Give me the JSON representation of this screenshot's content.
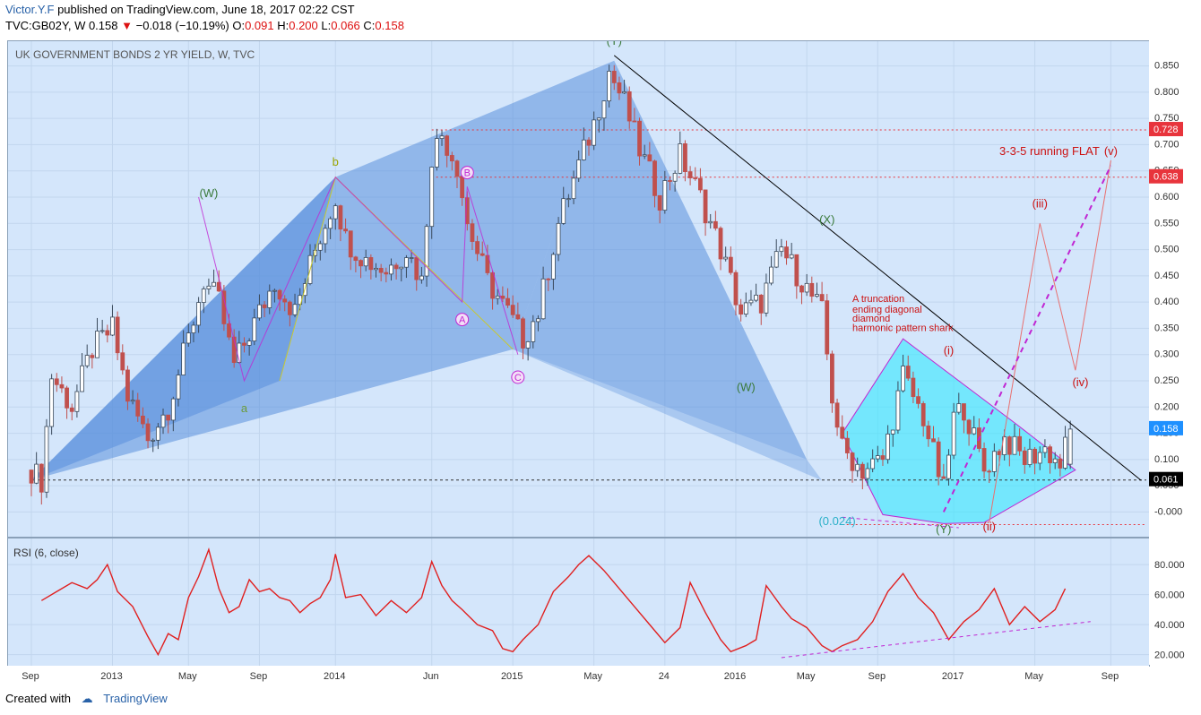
{
  "header": {
    "author": "Victor.Y.F",
    "published": "published on TradingView.com, June 18, 2017 02:22 CST",
    "symbol_line_prefix": "TVC:GB02Y, W  0.158",
    "change": "−0.018 (−10.19%)",
    "o_label": "O:",
    "o_value": "0.091",
    "h_label": "H:",
    "h_value": "0.200",
    "l_label": "L:",
    "l_value": "0.066",
    "c_label": "C:",
    "c_value": "0.158"
  },
  "footer": {
    "created_with": "Created with",
    "brand": "TradingView"
  },
  "colors": {
    "pane_bg": "#d4e6fb",
    "harmonic_fill": "#5a8fdc",
    "diagonal_fill": "#34e8ff",
    "wave_magenta": "#c026d3",
    "projection_red": "#e87070",
    "rsi_line": "#e02020",
    "candle_up": "#3a4a5c",
    "candle_down": "#c0504d",
    "last_price": "#1e90ff",
    "level_red": "#e8343c"
  },
  "chart_data": [
    {
      "type": "candlestick",
      "title": "UK GOVERNMENT BONDS 2 YR YIELD, W, TVC",
      "interval": "W",
      "y_range": [
        -0.03,
        0.88
      ],
      "y_ticks": [
        "0.850",
        "0.800",
        "0.750",
        "0.700",
        "0.650",
        "0.600",
        "0.550",
        "0.500",
        "0.450",
        "0.400",
        "0.350",
        "0.300",
        "0.250",
        "0.200",
        "0.150",
        "0.100",
        "0.050",
        "-0.000"
      ],
      "x_ticks": [
        {
          "label": "Sep",
          "t": 0
        },
        {
          "label": "2013",
          "t": 16
        },
        {
          "label": "May",
          "t": 31
        },
        {
          "label": "Sep",
          "t": 45
        },
        {
          "label": "2014",
          "t": 60
        },
        {
          "label": "Jun",
          "t": 79
        },
        {
          "label": "2015",
          "t": 95
        },
        {
          "label": "May",
          "t": 111
        },
        {
          "label": "24",
          "t": 125
        },
        {
          "label": "2016",
          "t": 139
        },
        {
          "label": "May",
          "t": 153
        },
        {
          "label": "Sep",
          "t": 167
        },
        {
          "label": "2017",
          "t": 182
        },
        {
          "label": "May",
          "t": 198
        },
        {
          "label": "Sep",
          "t": 213
        }
      ],
      "close_path": [
        [
          0,
          0.08
        ],
        [
          2,
          0.06
        ],
        [
          4,
          0.26
        ],
        [
          8,
          0.2
        ],
        [
          12,
          0.31
        ],
        [
          16,
          0.35
        ],
        [
          19,
          0.22
        ],
        [
          23,
          0.14
        ],
        [
          27,
          0.2
        ],
        [
          31,
          0.33
        ],
        [
          34,
          0.44
        ],
        [
          37,
          0.4
        ],
        [
          40,
          0.28
        ],
        [
          44,
          0.36
        ],
        [
          48,
          0.44
        ],
        [
          52,
          0.38
        ],
        [
          56,
          0.5
        ],
        [
          60,
          0.6
        ],
        [
          62,
          0.52
        ],
        [
          66,
          0.48
        ],
        [
          70,
          0.46
        ],
        [
          74,
          0.5
        ],
        [
          77,
          0.44
        ],
        [
          79,
          0.68
        ],
        [
          81,
          0.72
        ],
        [
          84,
          0.66
        ],
        [
          86,
          0.55
        ],
        [
          90,
          0.44
        ],
        [
          94,
          0.38
        ],
        [
          97,
          0.33
        ],
        [
          100,
          0.38
        ],
        [
          104,
          0.55
        ],
        [
          108,
          0.66
        ],
        [
          111,
          0.74
        ],
        [
          114,
          0.84
        ],
        [
          117,
          0.78
        ],
        [
          120,
          0.69
        ],
        [
          124,
          0.6
        ],
        [
          128,
          0.68
        ],
        [
          132,
          0.6
        ],
        [
          136,
          0.5
        ],
        [
          140,
          0.38
        ],
        [
          144,
          0.4
        ],
        [
          148,
          0.5
        ],
        [
          152,
          0.44
        ],
        [
          156,
          0.38
        ],
        [
          158,
          0.22
        ],
        [
          160,
          0.12
        ],
        [
          164,
          0.08
        ],
        [
          168,
          0.1
        ],
        [
          172,
          0.26
        ],
        [
          176,
          0.18
        ],
        [
          180,
          0.04
        ],
        [
          182,
          0.18
        ],
        [
          184,
          0.2
        ],
        [
          188,
          0.08
        ],
        [
          192,
          0.14
        ],
        [
          196,
          0.1
        ],
        [
          200,
          0.12
        ],
        [
          203,
          0.09
        ],
        [
          205,
          0.158
        ]
      ],
      "last_price": "0.158",
      "price_labels": [
        {
          "value": "0.728",
          "y": 0.728,
          "color": "#e8343c"
        },
        {
          "value": "0.638",
          "y": 0.638,
          "color": "#e8343c"
        },
        {
          "value": "0.158",
          "y": 0.158,
          "color": "#1e90ff"
        },
        {
          "value": "0.061",
          "y": 0.061,
          "color": "#000000"
        }
      ],
      "level_lines": [
        {
          "y": 0.728,
          "style": "red-dotted"
        },
        {
          "y": 0.638,
          "style": "red-dotted"
        },
        {
          "y": 0.061,
          "style": "black-dashed"
        },
        {
          "y": -0.024,
          "style": "red-dotted"
        }
      ],
      "harmonic_pattern": {
        "X": [
          0,
          0.061
        ],
        "A": [
          49,
          0.25
        ],
        "B": [
          60,
          0.638
        ],
        "C": [
          95,
          0.31
        ],
        "D": [
          115,
          0.86
        ]
      },
      "harmonic_pattern_2": {
        "X": [
          115,
          0.86
        ],
        "A": [
          95,
          0.31
        ],
        "B": [
          153,
          0.1
        ],
        "C": [
          156,
          0.06
        ]
      },
      "diamond": [
        [
          160,
          0.15
        ],
        [
          172,
          0.33
        ],
        [
          194,
          0.17
        ],
        [
          206,
          0.08
        ],
        [
          188,
          -0.02
        ],
        [
          180,
          -0.022
        ],
        [
          168,
          -0.005
        ]
      ],
      "resistance_line": [
        [
          115,
          0.87
        ],
        [
          219,
          0.06
        ]
      ],
      "wave_labels": [
        {
          "text": "(W)",
          "t": 35,
          "y": 0.6,
          "color": "#3a7a3a"
        },
        {
          "text": "b",
          "t": 60,
          "y": 0.66,
          "color": "#9aa400"
        },
        {
          "text": "a",
          "t": 42,
          "y": 0.19,
          "color": "#6a9a3a"
        },
        {
          "text": "(Y)",
          "t": 115,
          "y": 0.89,
          "color": "#3a7a3a"
        },
        {
          "text": "B",
          "t": 86,
          "y": 0.64,
          "color": "#c026d3",
          "circle": true
        },
        {
          "text": "A",
          "t": 85,
          "y": 0.36,
          "color": "#c026d3",
          "circle": true
        },
        {
          "text": "C",
          "t": 96,
          "y": 0.25,
          "color": "#c026d3",
          "circle": true
        },
        {
          "text": "(X)",
          "t": 157,
          "y": 0.55,
          "color": "#3a7a3a"
        },
        {
          "text": "(W)",
          "t": 141,
          "y": 0.23,
          "color": "#3a7a3a"
        },
        {
          "text": "(i)",
          "t": 181,
          "y": 0.3,
          "color": "#cc1111"
        },
        {
          "text": "(ii)",
          "t": 189,
          "y": -0.035,
          "color": "#cc1111"
        },
        {
          "text": "(iii)",
          "t": 199,
          "y": 0.58,
          "color": "#cc1111"
        },
        {
          "text": "(iv)",
          "t": 207,
          "y": 0.24,
          "color": "#cc1111"
        },
        {
          "text": "(v)",
          "t": 213,
          "y": 0.68,
          "color": "#cc1111"
        },
        {
          "text": "(Y)",
          "t": 180,
          "y": -0.04,
          "color": "#3a7a3a"
        },
        {
          "text": "(0.024)",
          "t": 159,
          "y": -0.025,
          "color": "#2ab0c8"
        }
      ],
      "annotations": [
        {
          "text": "3-3-5 running FLAT",
          "t": 191,
          "y": 0.68,
          "color": "#cc1111"
        },
        {
          "text": "A truncation",
          "t": 162,
          "y": 0.4,
          "color": "#cc1111"
        },
        {
          "text": "ending diagonal",
          "t": 162,
          "y": 0.38,
          "color": "#cc1111"
        },
        {
          "text": "diamond",
          "t": 162,
          "y": 0.363,
          "color": "#cc1111"
        },
        {
          "text": "harmonic pattern shark",
          "t": 162,
          "y": 0.345,
          "color": "#cc1111"
        }
      ],
      "projection_path": [
        [
          189,
          -0.02
        ],
        [
          199,
          0.55
        ],
        [
          206,
          0.27
        ],
        [
          213,
          0.67
        ]
      ],
      "projection_channel": [
        [
          180,
          0.0
        ],
        [
          213,
          0.66
        ]
      ]
    },
    {
      "type": "line",
      "title": "RSI (6, close)",
      "y_range": [
        15,
        95
      ],
      "y_ticks": [
        "80.000",
        "60.000",
        "40.000",
        "20.000"
      ],
      "values_path": [
        [
          2,
          56
        ],
        [
          5,
          62
        ],
        [
          8,
          68
        ],
        [
          11,
          64
        ],
        [
          13,
          70
        ],
        [
          15,
          80
        ],
        [
          17,
          62
        ],
        [
          20,
          52
        ],
        [
          23,
          32
        ],
        [
          25,
          20
        ],
        [
          27,
          34
        ],
        [
          29,
          30
        ],
        [
          31,
          58
        ],
        [
          33,
          72
        ],
        [
          35,
          90
        ],
        [
          37,
          64
        ],
        [
          39,
          48
        ],
        [
          41,
          52
        ],
        [
          43,
          70
        ],
        [
          45,
          62
        ],
        [
          47,
          64
        ],
        [
          49,
          58
        ],
        [
          51,
          56
        ],
        [
          53,
          48
        ],
        [
          55,
          54
        ],
        [
          57,
          58
        ],
        [
          59,
          70
        ],
        [
          60,
          87
        ],
        [
          62,
          58
        ],
        [
          65,
          60
        ],
        [
          68,
          46
        ],
        [
          71,
          56
        ],
        [
          74,
          48
        ],
        [
          77,
          58
        ],
        [
          79,
          82
        ],
        [
          81,
          66
        ],
        [
          83,
          56
        ],
        [
          85,
          50
        ],
        [
          88,
          40
        ],
        [
          91,
          36
        ],
        [
          93,
          24
        ],
        [
          95,
          22
        ],
        [
          97,
          30
        ],
        [
          100,
          40
        ],
        [
          103,
          62
        ],
        [
          106,
          72
        ],
        [
          108,
          80
        ],
        [
          110,
          86
        ],
        [
          113,
          76
        ],
        [
          116,
          64
        ],
        [
          119,
          52
        ],
        [
          122,
          40
        ],
        [
          125,
          28
        ],
        [
          128,
          38
        ],
        [
          130,
          68
        ],
        [
          133,
          48
        ],
        [
          136,
          30
        ],
        [
          138,
          22
        ],
        [
          141,
          26
        ],
        [
          143,
          30
        ],
        [
          145,
          66
        ],
        [
          148,
          52
        ],
        [
          150,
          44
        ],
        [
          153,
          38
        ],
        [
          156,
          26
        ],
        [
          158,
          22
        ],
        [
          160,
          26
        ],
        [
          163,
          30
        ],
        [
          166,
          42
        ],
        [
          169,
          62
        ],
        [
          172,
          74
        ],
        [
          175,
          58
        ],
        [
          178,
          48
        ],
        [
          181,
          30
        ],
        [
          184,
          42
        ],
        [
          187,
          50
        ],
        [
          190,
          64
        ],
        [
          193,
          40
        ],
        [
          196,
          52
        ],
        [
          199,
          42
        ],
        [
          202,
          50
        ],
        [
          204,
          64
        ]
      ],
      "support_line": [
        [
          148,
          18
        ],
        [
          209,
          42
        ]
      ]
    }
  ]
}
